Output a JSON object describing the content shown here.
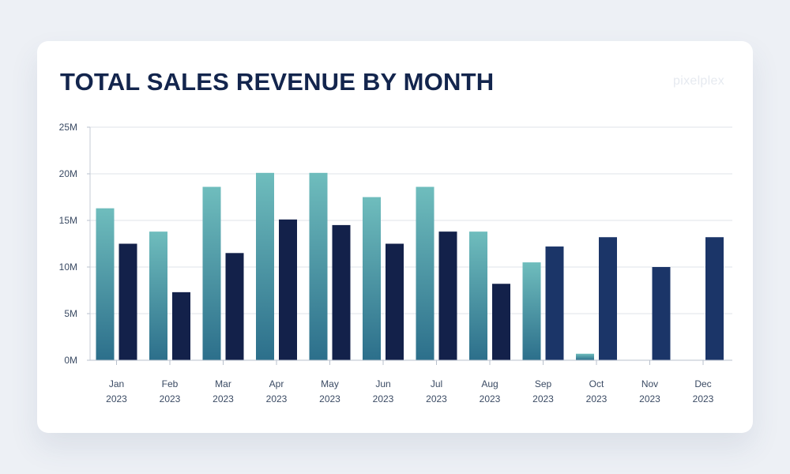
{
  "card": {
    "title": "TOTAL SALES REVENUE BY MONTH",
    "brand": "pixelplex"
  },
  "chart_data": {
    "type": "bar",
    "title": "TOTAL SALES REVENUE BY MONTH",
    "categories": [
      [
        "Jan",
        "2023"
      ],
      [
        "Feb",
        "2023"
      ],
      [
        "Mar",
        "2023"
      ],
      [
        "Apr",
        "2023"
      ],
      [
        "May",
        "2023"
      ],
      [
        "Jun",
        "2023"
      ],
      [
        "Jul",
        "2023"
      ],
      [
        "Aug",
        "2023"
      ],
      [
        "Sep",
        "2023"
      ],
      [
        "Oct",
        "2023"
      ],
      [
        "Nov",
        "2023"
      ],
      [
        "Dec",
        "2023"
      ]
    ],
    "y_ticks": [
      "0M",
      "5M",
      "10M",
      "15M",
      "20M",
      "25M"
    ],
    "ylim": [
      0,
      25
    ],
    "grid": true,
    "series": [
      {
        "values": [
          16.3,
          13.8,
          18.6,
          20.1,
          20.1,
          17.5,
          18.6,
          13.8,
          10.5,
          0.7,
          null,
          null
        ],
        "color_top": "#6fbdbd",
        "color_bottom": "#2c6f8b"
      },
      {
        "values": [
          12.5,
          7.3,
          11.5,
          15.1,
          14.5,
          12.5,
          13.8,
          8.2,
          12.2,
          13.2,
          10.0,
          13.2
        ],
        "color": "#13214a",
        "color_later": "#1b3568"
      }
    ]
  }
}
